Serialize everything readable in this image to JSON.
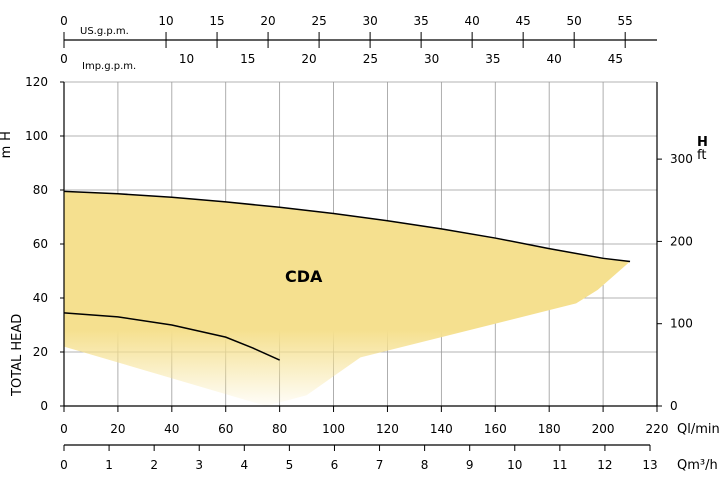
{
  "chart_data": {
    "type": "area",
    "series_label": "CDA",
    "left_axis": {
      "label": "TOTAL HEAD",
      "unit": "H m",
      "unit_top": "H",
      "unit_bottom": "m",
      "range": [
        0,
        120
      ],
      "ticks": [
        0,
        20,
        40,
        60,
        80,
        100,
        120
      ]
    },
    "right_axis": {
      "unit_top": "H",
      "unit_bottom": "ft",
      "ticks": [
        0,
        100,
        200,
        300
      ]
    },
    "x_axis_lmin": {
      "unit": "Ql/min",
      "range": [
        0,
        220
      ],
      "ticks": [
        0,
        20,
        40,
        60,
        80,
        100,
        120,
        140,
        160,
        180,
        200,
        220
      ]
    },
    "x_axis_m3h": {
      "unit": "Qm³/h",
      "ticks": [
        0,
        1,
        2,
        3,
        4,
        5,
        6,
        7,
        8,
        9,
        10,
        11,
        12,
        13
      ]
    },
    "top_axis_us": {
      "unit": "US.g.p.m.",
      "ticks": [
        0,
        10,
        15,
        20,
        25,
        30,
        35,
        40,
        45,
        50,
        55
      ]
    },
    "top_axis_imp": {
      "unit": "Imp.g.p.m.",
      "ticks": [
        0,
        10,
        15,
        20,
        25,
        30,
        35,
        40,
        45
      ]
    },
    "upper_curve": {
      "x": [
        0,
        20,
        40,
        60,
        80,
        100,
        120,
        140,
        160,
        180,
        200,
        210
      ],
      "y": [
        79.5,
        78.6,
        77.3,
        75.6,
        73.6,
        71.3,
        68.6,
        65.6,
        62.2,
        58.3,
        54.7,
        53.5
      ]
    },
    "lower_curve": {
      "x": [
        0,
        20,
        40,
        60,
        70,
        80
      ],
      "y": [
        34.5,
        33,
        30,
        25.5,
        21.5,
        17
      ]
    },
    "grid": true,
    "fill_color": "#f5e08f",
    "line_color": "#000000"
  }
}
